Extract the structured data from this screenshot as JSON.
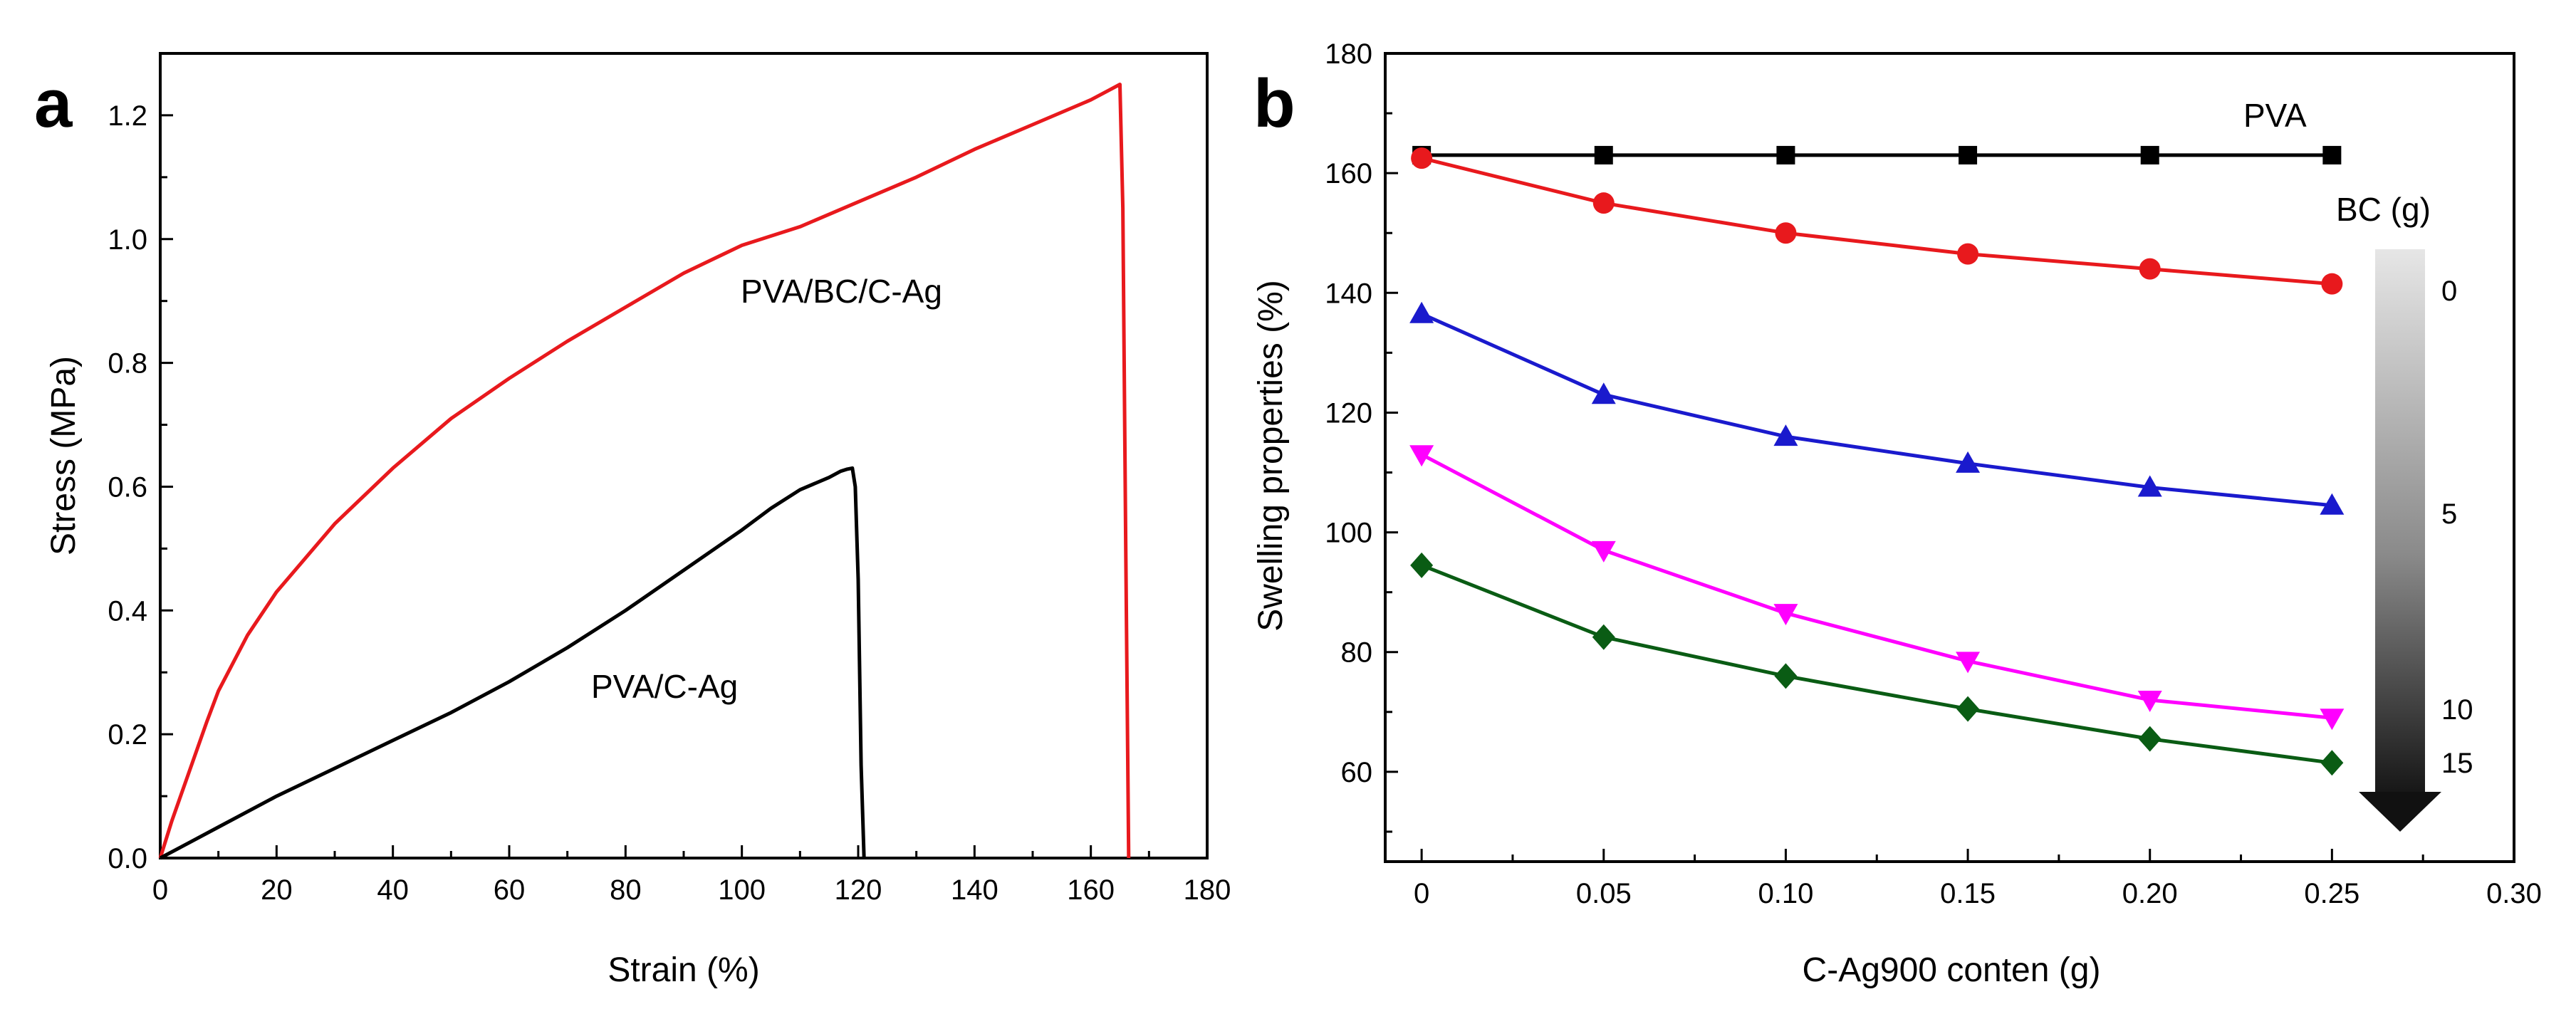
{
  "chart_data": [
    {
      "panel": "a",
      "type": "line",
      "xlabel": "Strain (%)",
      "ylabel": "Stress (MPa)",
      "xlim": [
        0,
        180
      ],
      "ylim": [
        0,
        1.3
      ],
      "xticks": [
        0,
        20,
        40,
        60,
        80,
        100,
        120,
        140,
        160,
        180
      ],
      "yticks": [
        "0.0",
        "0.2",
        "0.4",
        "0.6",
        "0.8",
        "1.0",
        "1.2"
      ],
      "series": [
        {
          "name": "PVA/BC/C-Ag",
          "color": "#e8191d",
          "x": [
            0,
            2,
            5,
            8,
            10,
            15,
            20,
            30,
            40,
            50,
            60,
            70,
            80,
            90,
            100,
            110,
            120,
            130,
            140,
            150,
            160,
            163,
            165,
            165.5,
            166,
            166.5
          ],
          "y": [
            0,
            0.06,
            0.14,
            0.22,
            0.27,
            0.36,
            0.43,
            0.54,
            0.63,
            0.71,
            0.775,
            0.835,
            0.89,
            0.945,
            0.99,
            1.02,
            1.06,
            1.1,
            1.145,
            1.185,
            1.225,
            1.24,
            1.25,
            1.05,
            0.5,
            0
          ]
        },
        {
          "name": "PVA/C-Ag",
          "color": "#000000",
          "x": [
            0,
            5,
            10,
            20,
            30,
            40,
            50,
            60,
            70,
            80,
            90,
            100,
            105,
            110,
            115,
            117,
            118,
            119,
            119.5,
            120,
            120.5,
            121
          ],
          "y": [
            0,
            0.025,
            0.05,
            0.1,
            0.145,
            0.19,
            0.235,
            0.285,
            0.34,
            0.4,
            0.465,
            0.53,
            0.565,
            0.595,
            0.615,
            0.625,
            0.628,
            0.63,
            0.6,
            0.45,
            0.15,
            0
          ]
        }
      ],
      "annotations": [
        "PVA/BC/C-Ag",
        "PVA/C-Ag"
      ]
    },
    {
      "panel": "b",
      "type": "line",
      "xlabel": "C-Ag900 conten (g)",
      "ylabel": "Swelling properties (%)",
      "xlim": [
        -0.01,
        0.3
      ],
      "ylim": [
        45,
        180
      ],
      "xticks": [
        "0",
        "0.05",
        "0.10",
        "0.15",
        "0.20",
        "0.25",
        "0.30"
      ],
      "yticks": [
        "60",
        "80",
        "100",
        "120",
        "140",
        "160",
        "180"
      ],
      "x": [
        0,
        0.05,
        0.1,
        0.15,
        0.2,
        0.25
      ],
      "series": [
        {
          "name": "PVA",
          "color": "#000000",
          "marker": "square",
          "values": [
            163,
            163,
            163,
            163,
            163,
            163
          ]
        },
        {
          "name": "BC 0",
          "color": "#e8191d",
          "marker": "circle",
          "values": [
            162.5,
            155,
            150,
            146.5,
            144,
            141.5
          ]
        },
        {
          "name": "BC 5",
          "color": "#1a1acd",
          "marker": "triangle-up",
          "values": [
            136.5,
            123,
            116,
            111.5,
            107.5,
            104.5
          ]
        },
        {
          "name": "BC 10",
          "color": "#ff00ff",
          "marker": "triangle-down",
          "values": [
            113,
            97,
            86.5,
            78.5,
            72,
            69
          ]
        },
        {
          "name": "BC 15",
          "color": "#0a5c14",
          "marker": "diamond",
          "values": [
            94.5,
            82.5,
            76,
            70.5,
            65.5,
            61.5
          ]
        }
      ],
      "annotations": [
        "PVA"
      ],
      "legend": {
        "title": "BC (g)",
        "position": "right",
        "labels": [
          "0",
          "5",
          "10",
          "15"
        ]
      }
    }
  ],
  "panel_letters": [
    "a",
    "b"
  ]
}
